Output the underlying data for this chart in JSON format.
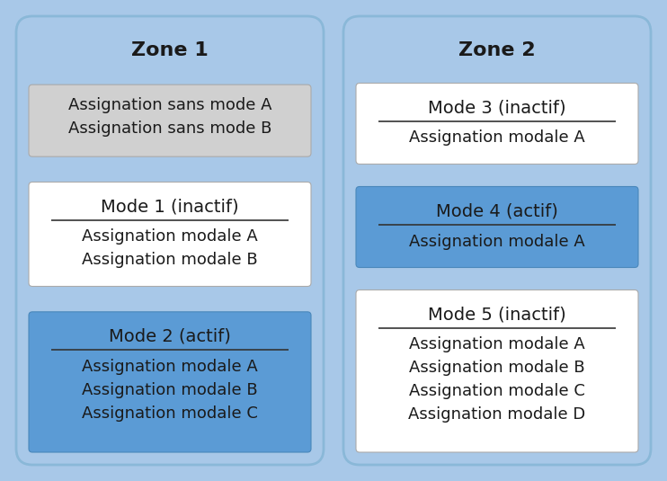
{
  "figure_bg": "#a8c8e8",
  "zone_bg": "#a8c8e8",
  "zone_border": "#7aaccc",
  "white_box_color": "#ffffff",
  "gray_box_color": "#d0d0d0",
  "blue_box_color": "#5b9bd5",
  "text_color": "#1a1a1a",
  "zone1_title": "Zone 1",
  "zone2_title": "Zone 2",
  "zone1_boxes": [
    {
      "bg": "#d0d0d0",
      "title": null,
      "lines": [
        "Assignation sans mode A",
        "Assignation sans mode B"
      ]
    },
    {
      "bg": "#ffffff",
      "title": "Mode 1 (inactif)",
      "lines": [
        "Assignation modale A",
        "Assignation modale B"
      ]
    },
    {
      "bg": "#5b9bd5",
      "title": "Mode 2 (actif)",
      "lines": [
        "Assignation modale A",
        "Assignation modale B",
        "Assignation modale C"
      ]
    }
  ],
  "zone2_boxes": [
    {
      "bg": "#ffffff",
      "title": "Mode 3 (inactif)",
      "lines": [
        "Assignation modale A"
      ]
    },
    {
      "bg": "#5b9bd5",
      "title": "Mode 4 (actif)",
      "lines": [
        "Assignation modale A"
      ]
    },
    {
      "bg": "#ffffff",
      "title": "Mode 5 (inactif)",
      "lines": [
        "Assignation modale A",
        "Assignation modale B",
        "Assignation modale C",
        "Assignation modale D"
      ]
    }
  ],
  "zone_title_fontsize": 16,
  "title_fontsize": 14,
  "label_fontsize": 13
}
